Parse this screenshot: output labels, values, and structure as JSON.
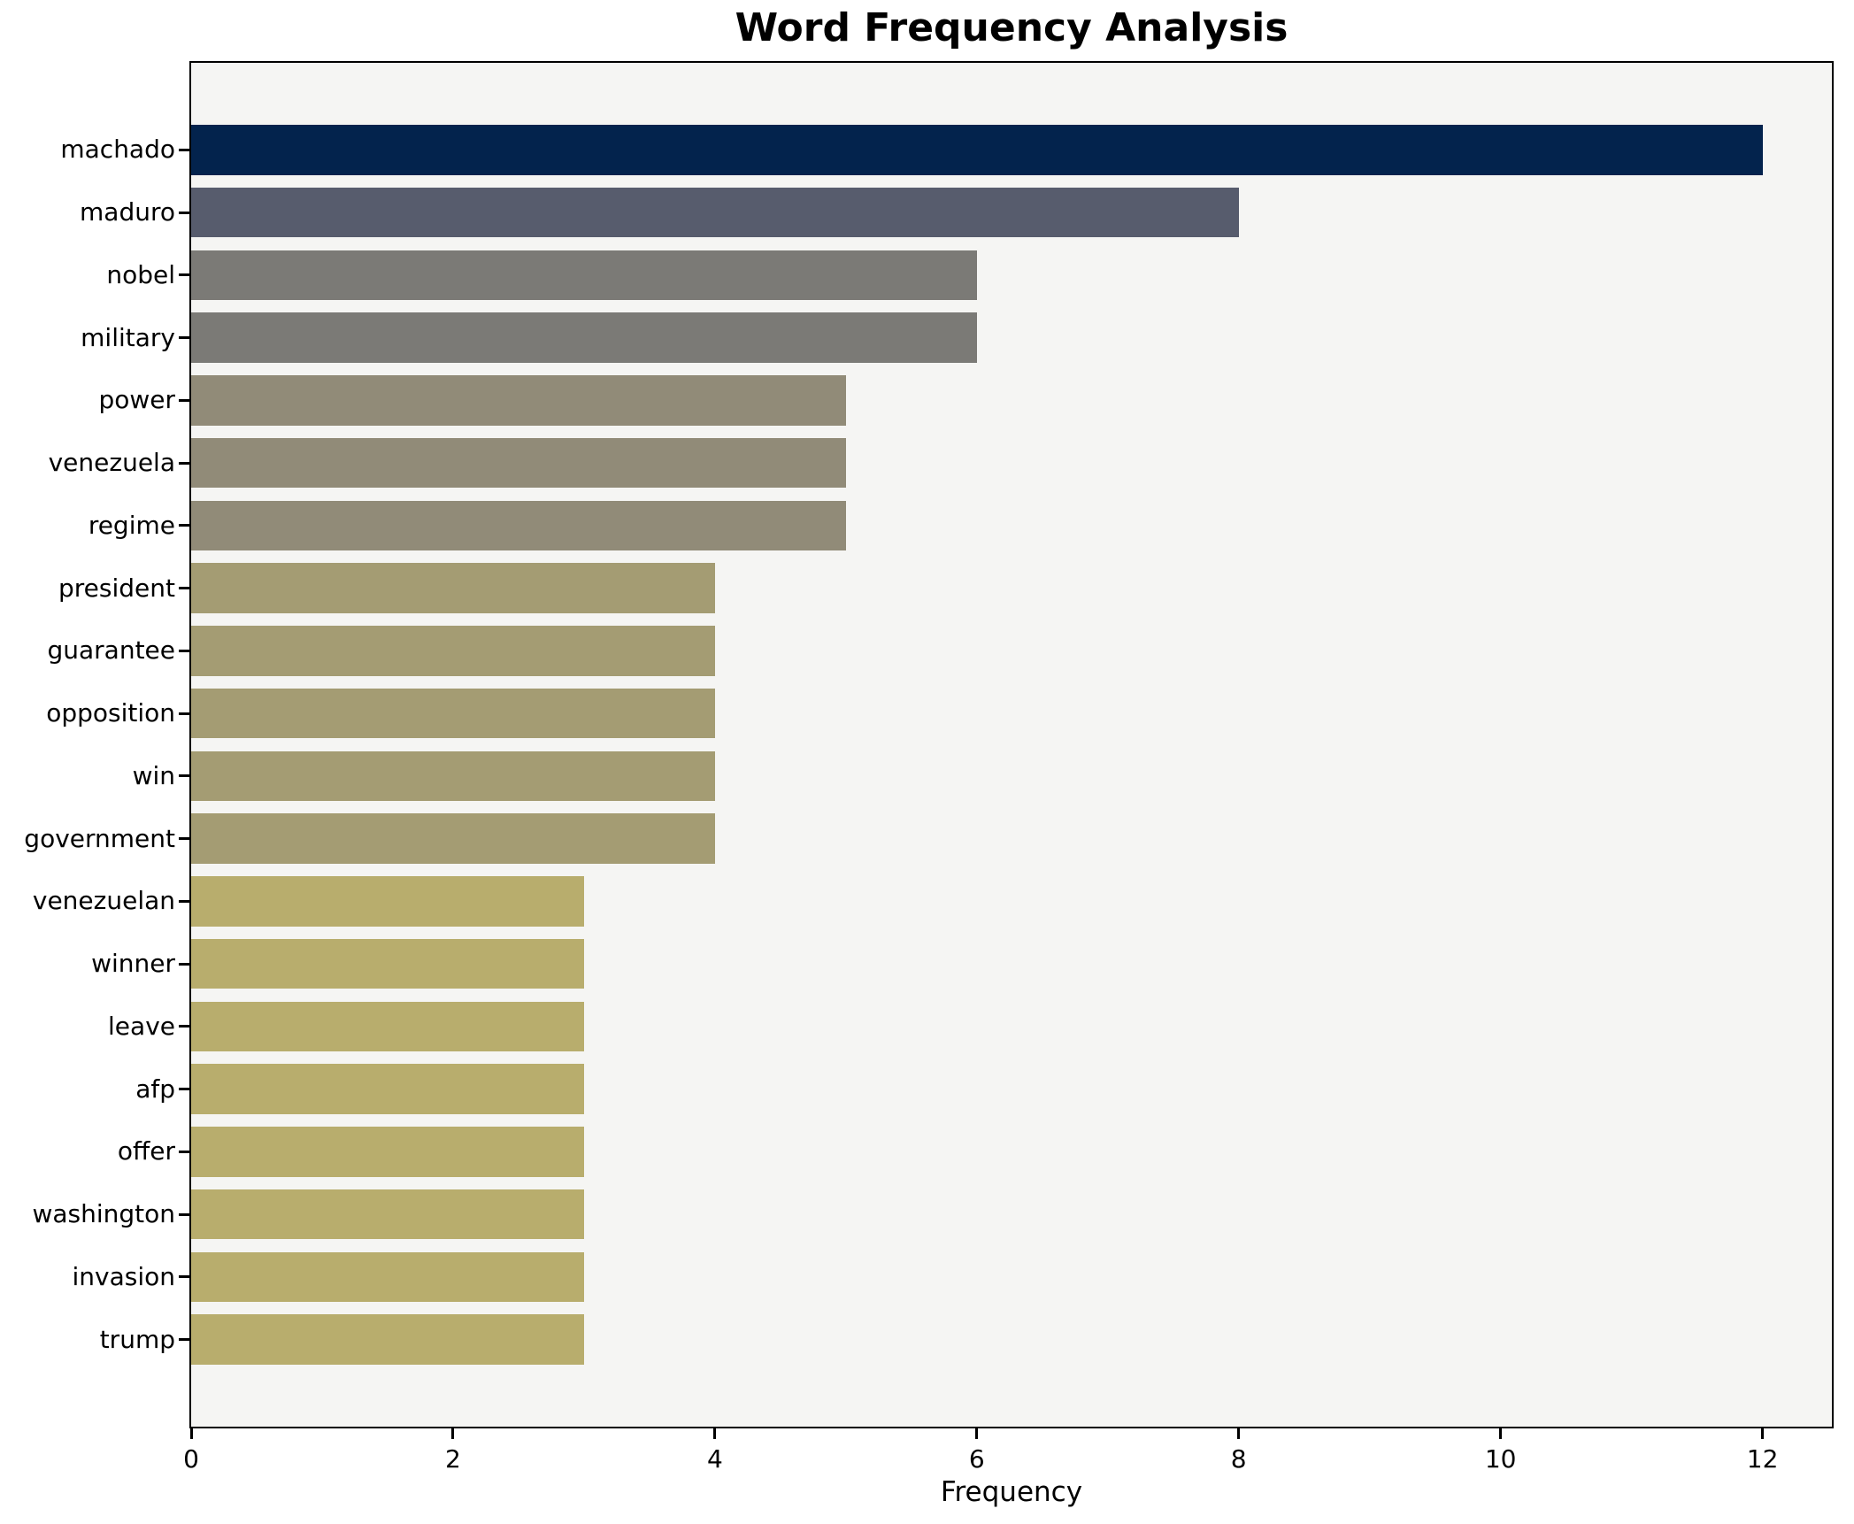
{
  "chart_data": {
    "type": "bar",
    "orientation": "horizontal",
    "title": "Word Frequency Analysis",
    "xlabel": "Frequency",
    "ylabel": "",
    "categories": [
      "machado",
      "maduro",
      "nobel",
      "military",
      "power",
      "venezuela",
      "regime",
      "president",
      "guarantee",
      "opposition",
      "win",
      "government",
      "venezuelan",
      "winner",
      "leave",
      "afp",
      "offer",
      "washington",
      "invasion",
      "trump"
    ],
    "values": [
      12,
      8,
      6,
      6,
      5,
      5,
      5,
      4,
      4,
      4,
      4,
      4,
      3,
      3,
      3,
      3,
      3,
      3,
      3,
      3
    ],
    "bar_colors": [
      "#03234d",
      "#575c6d",
      "#7b7a76",
      "#7b7a76",
      "#918b78",
      "#918b78",
      "#918b78",
      "#a49c73",
      "#a49c73",
      "#a49c73",
      "#a49c73",
      "#a49c73",
      "#b8ad6d",
      "#b8ad6d",
      "#b8ad6d",
      "#b8ad6d",
      "#b8ad6d",
      "#b8ad6d",
      "#b8ad6d",
      "#b8ad6d"
    ],
    "x_ticks": [
      "0",
      "2",
      "4",
      "6",
      "8",
      "10",
      "12"
    ],
    "x_tick_values": [
      0,
      2,
      4,
      6,
      8,
      10,
      12
    ],
    "xlim": [
      0,
      12.53
    ],
    "bar_band_fraction": 0.8,
    "grid": false,
    "legend": null,
    "plot_bg": "#f5f5f3",
    "figure_bg": "#ffffff",
    "spine_color": "#000000",
    "title_color": "#000000",
    "tick_label_color": "#000000"
  }
}
